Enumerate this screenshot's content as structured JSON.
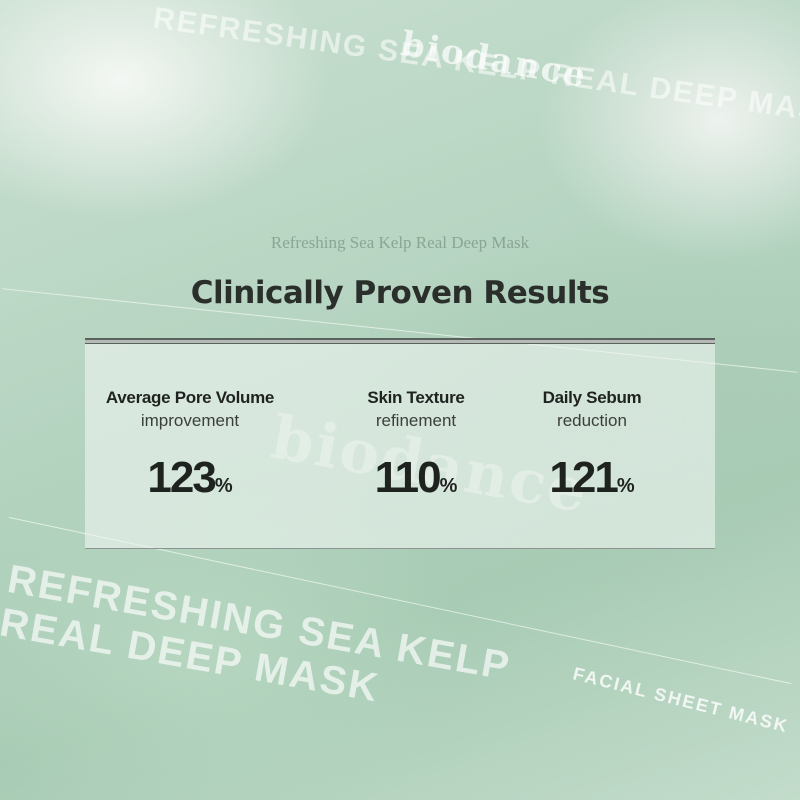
{
  "background": {
    "package_text": [
      "REFRESHING SEA KELP REAL DEEP MASK",
      "biodance",
      "REFRESHING SEA KELP REAL DEEP MASK",
      "biodance",
      "FACIAL SHEET MASK"
    ]
  },
  "header": {
    "subtitle": "Refreshing Sea Kelp Real Deep Mask",
    "title": "Clinically Proven Results"
  },
  "stats": [
    {
      "label": "Average Pore Volume",
      "sub": "improvement",
      "value": "123",
      "unit": "%"
    },
    {
      "label": "Skin Texture",
      "sub": "refinement",
      "value": "110",
      "unit": "%"
    },
    {
      "label": "Daily Sebum",
      "sub": "reduction",
      "value": "121",
      "unit": "%"
    }
  ]
}
